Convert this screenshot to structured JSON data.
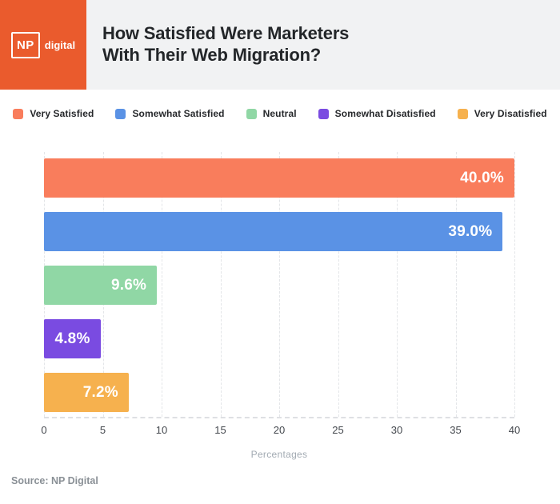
{
  "header": {
    "logo_np": "NP",
    "logo_digital": "digital",
    "title": "How Satisfied Were Marketers\nWith Their Web Migration?"
  },
  "chart_data": {
    "type": "bar",
    "orientation": "horizontal",
    "title": "How Satisfied Were Marketers With Their Web Migration?",
    "categories": [
      "Very Satisfied",
      "Somewhat Satisfied",
      "Neutral",
      "Somewhat Disatisfied",
      "Very Disatisfied"
    ],
    "values": [
      40.0,
      39.0,
      9.6,
      4.8,
      7.2
    ],
    "value_labels": [
      "40.0%",
      "39.0%",
      "9.6%",
      "4.8%",
      "7.2%"
    ],
    "colors": [
      "#F97D5C",
      "#5A92E5",
      "#90D7A5",
      "#7A4BE1",
      "#F6B14E"
    ],
    "xlabel": "Percentages",
    "xlim": [
      0,
      40
    ],
    "xticks": [
      "0",
      "5",
      "10",
      "15",
      "20",
      "25",
      "30",
      "35",
      "40"
    ],
    "grid": "vertical-dashed",
    "legend_position": "top"
  },
  "footer": {
    "source": "Source: NP Digital"
  },
  "colors": {
    "brand_orange": "#EA5B2D",
    "header_gray": "#F1F2F3",
    "title_text": "#232629",
    "gridline": "#E3E5E8",
    "tick_text": "#43474D",
    "xlabel_text": "#A3ABB3",
    "source_text": "#8A9096",
    "bar_label_text": "#FFFFFF"
  }
}
